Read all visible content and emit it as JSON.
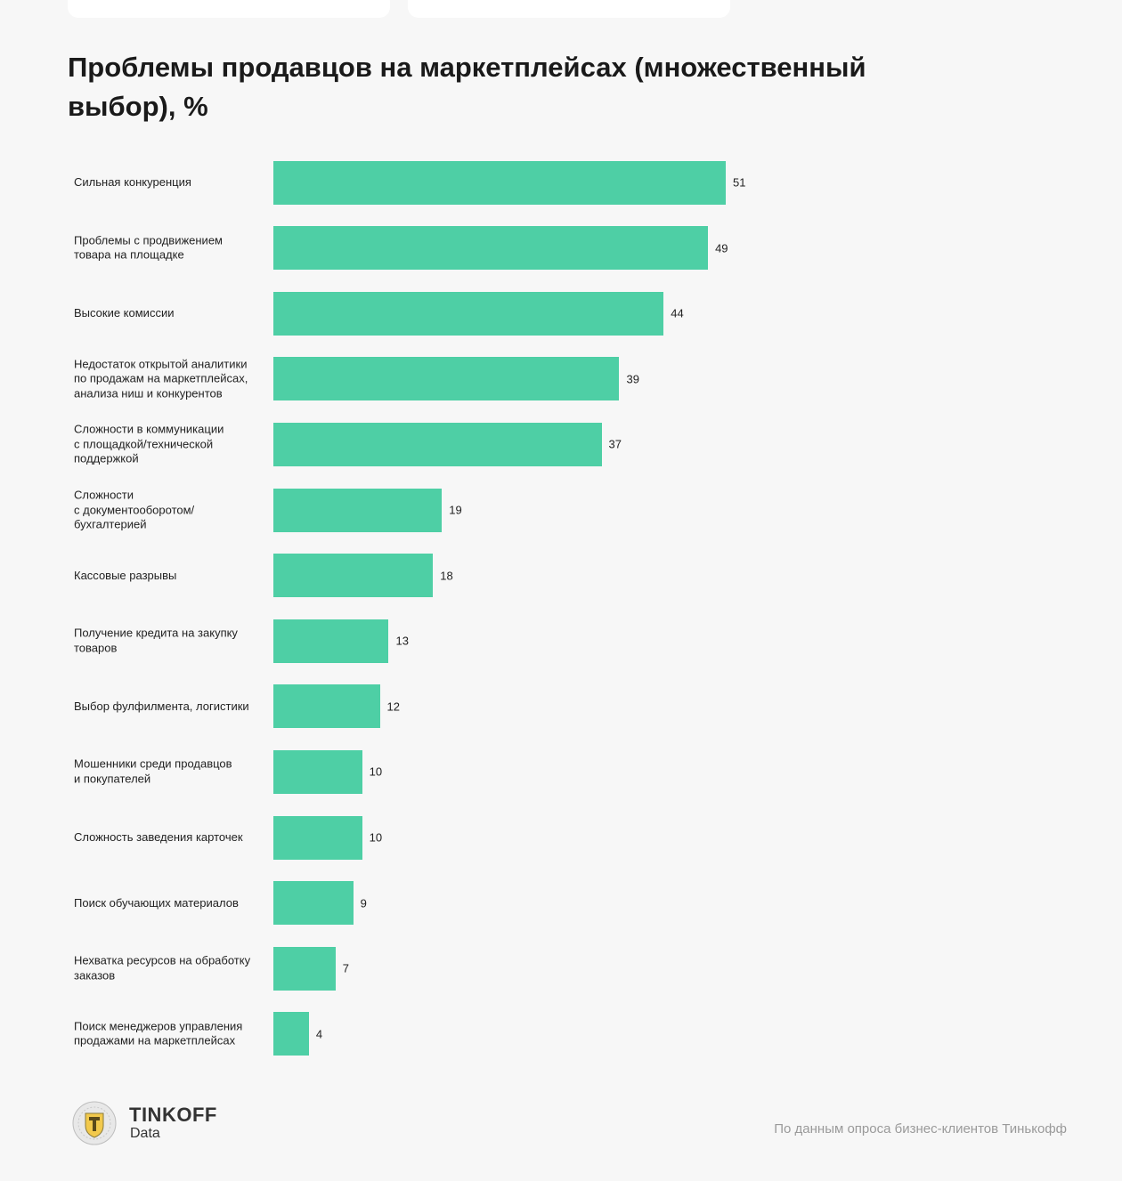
{
  "title": "Проблемы продавцов на маркетплейсах (множественный выбор), %",
  "colors": {
    "bar": "#4ecfa5",
    "background": "#f7f7f7"
  },
  "chart_data": {
    "type": "bar",
    "orientation": "horizontal",
    "title": "Проблемы продавцов на маркетплейсах (множественный выбор), %",
    "categories": [
      [
        "Сильная конкуренция"
      ],
      [
        "Проблемы с продвижением",
        "товара на площадке"
      ],
      [
        "Высокие комиссии"
      ],
      [
        "Недостаток открытой аналитики",
        "по продажам на маркетплейсах,",
        "анализа ниш и конкурентов"
      ],
      [
        "Сложности в коммуникации",
        "с площадкой/технической",
        "поддержкой"
      ],
      [
        "Сложности",
        "с документооборотом/",
        "бухгалтерией"
      ],
      [
        "Кассовые разрывы"
      ],
      [
        "Получение кредита на закупку",
        "товаров"
      ],
      [
        "Выбор фулфилмента, логистики"
      ],
      [
        "Мошенники среди продавцов",
        "и покупателей"
      ],
      [
        "Сложность заведения карточек"
      ],
      [
        "Поиск обучающих материалов"
      ],
      [
        "Нехватка ресурсов на обработку",
        "заказов"
      ],
      [
        "Поиск менеджеров управления",
        "продажами на маркетплейсах"
      ]
    ],
    "values": [
      51,
      49,
      44,
      39,
      37,
      19,
      18,
      13,
      12,
      10,
      10,
      9,
      7,
      4
    ],
    "xlim": [
      0,
      51
    ],
    "grid": false,
    "legend": "none"
  },
  "footer": {
    "brand": "TINKOFF",
    "brand_sub": "Data",
    "source": "По данным опроса бизнес-клиентов Тинькофф",
    "logo_icon": "tinkoff-shield-icon"
  }
}
